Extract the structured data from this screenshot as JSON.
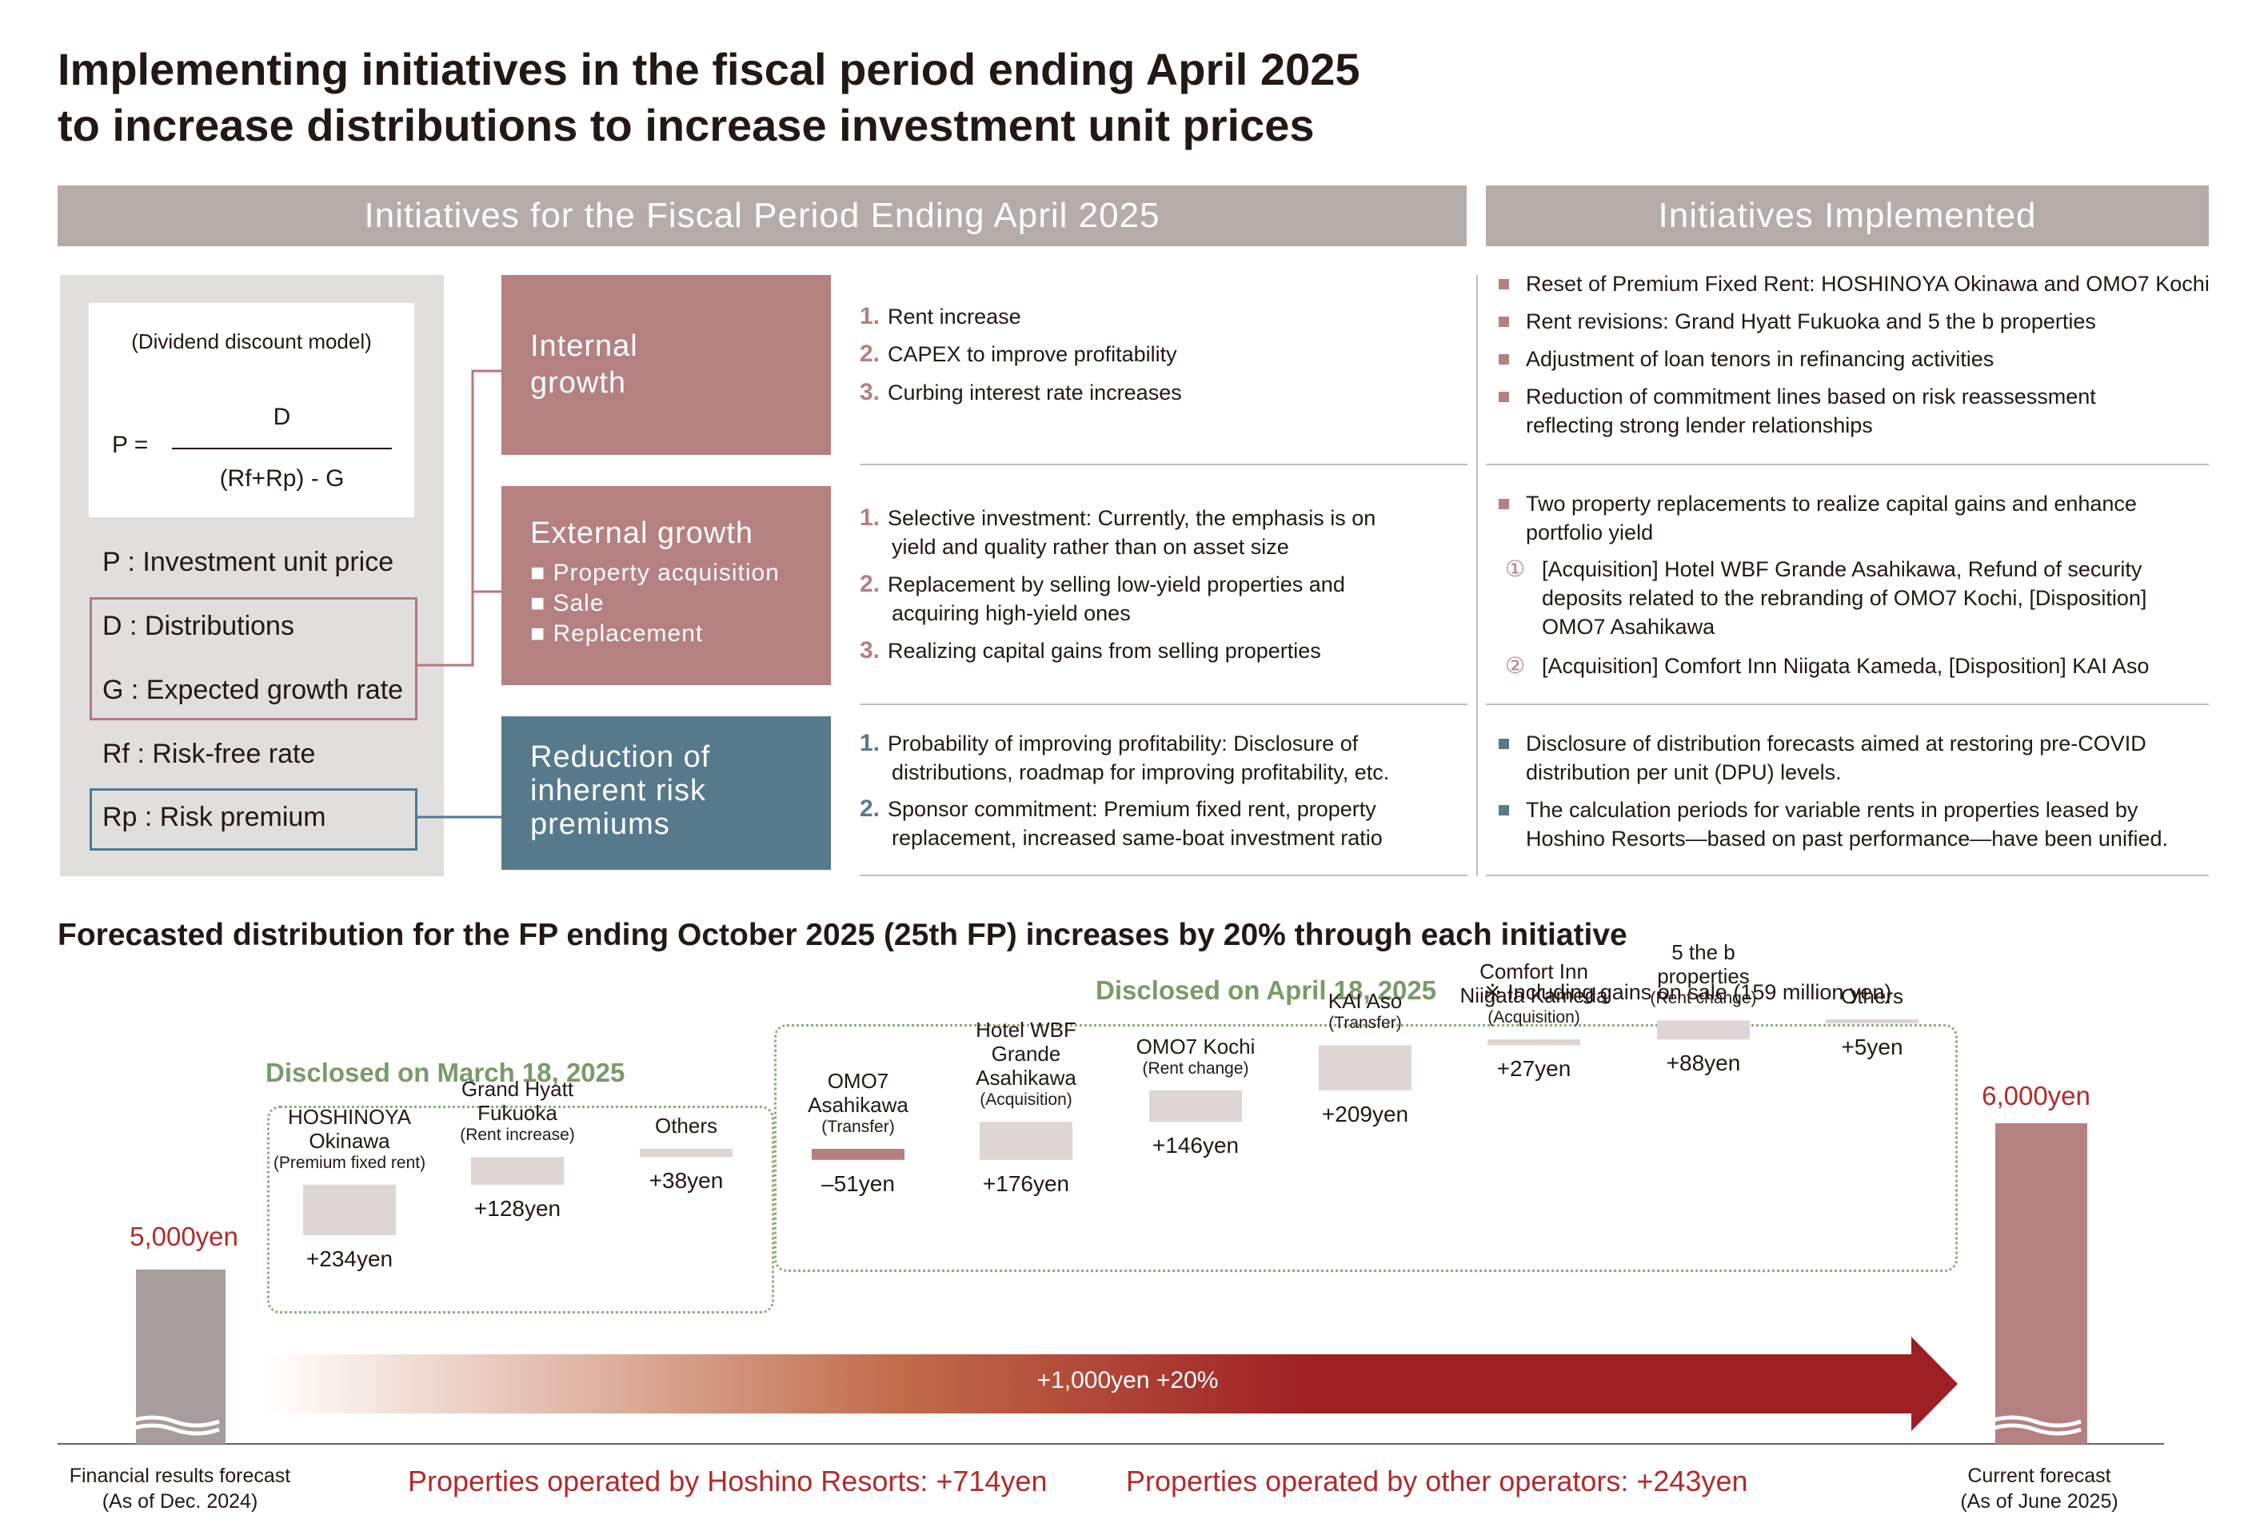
{
  "title_line1": "Implementing initiatives in the fiscal period ending April 2025",
  "title_line2": "to increase distributions to increase investment unit prices",
  "header_left": "Initiatives for the Fiscal Period Ending April 2025",
  "header_right": "Initiatives Implemented",
  "ddm": {
    "caption": "(Dividend discount model)",
    "p_eq": "P =",
    "numerator": "D",
    "denominator": "(Rf+Rp) - G",
    "vars": {
      "p": "P : Investment unit price",
      "d": "D : Distributions",
      "g": "G : Expected growth rate",
      "rf": "Rf : Risk-free rate",
      "rp": "Rp : Risk premium"
    }
  },
  "categories": {
    "internal": {
      "title1": "Internal",
      "title2": "growth"
    },
    "external": {
      "title": "External growth",
      "sub1": "■ Property acquisition",
      "sub2": "■ Sale",
      "sub3": "■ Replacement"
    },
    "risk": {
      "title1": "Reduction of",
      "title2": "inherent risk",
      "title3": "premiums"
    }
  },
  "internal_items": [
    {
      "n": "1.",
      "t": "Rent increase"
    },
    {
      "n": "2.",
      "t": "CAPEX to improve profitability"
    },
    {
      "n": "3.",
      "t": "Curbing interest rate increases"
    }
  ],
  "external_items": [
    {
      "n": "1.",
      "t1": "Selective investment: Currently, the emphasis is on",
      "t2": "yield and quality rather than on asset size"
    },
    {
      "n": "2.",
      "t1": "Replacement by selling low-yield properties and",
      "t2": "acquiring high-yield ones"
    },
    {
      "n": "3.",
      "t1": "Realizing capital gains from selling properties"
    }
  ],
  "risk_items": [
    {
      "n": "1.",
      "t1": "Probability of improving profitability: Disclosure of",
      "t2": "distributions, roadmap for improving profitability, etc."
    },
    {
      "n": "2.",
      "t1": "Sponsor commitment: Premium fixed rent, property",
      "t2": "replacement, increased same-boat investment ratio"
    }
  ],
  "implemented_internal": [
    {
      "t1": "Reset of Premium Fixed Rent: HOSHINOYA Okinawa and OMO7 Kochi"
    },
    {
      "t1": "Rent revisions: Grand Hyatt Fukuoka and 5 the b properties"
    },
    {
      "t1": "Adjustment of loan tenors in refinancing activities"
    },
    {
      "t1": "Reduction of commitment lines based on risk reassessment",
      "t2": "reflecting strong lender relationships"
    }
  ],
  "implemented_external": {
    "main1": "Two property replacements to realize capital gains and enhance",
    "main2": "portfolio yield",
    "c1": "①",
    "s1_1": "[Acquisition] Hotel WBF Grande Asahikawa, Refund of security",
    "s1_2": "deposits related to the rebranding of OMO7 Kochi, [Disposition]",
    "s1_3": "OMO7 Asahikawa",
    "c2": "②",
    "s2_1": "[Acquisition] Comfort Inn Niigata Kameda, [Disposition] KAI Aso"
  },
  "implemented_risk": [
    {
      "t1": "Disclosure of distribution forecasts aimed at restoring pre-COVID",
      "t2": "distribution per unit (DPU) levels."
    },
    {
      "t1": "The calculation periods for variable rents in properties leased by",
      "t2": "Hoshino Resorts—based on past performance—have been unified."
    }
  ],
  "forecast_title": "Forecasted distribution for the FP ending October 2025 (25th FP) increases by 20% through each initiative",
  "disclosed_march": "Disclosed on March 18, 2025",
  "disclosed_april": "Disclosed on April 18, 2025",
  "gains_note": "※ Including gains on sale (159 million yen)",
  "colors": {
    "accent_red": "#b58080",
    "accent_blue": "#57798c",
    "dark_red": "#9e1f23",
    "green": "#7a9a67",
    "header_gray": "#b5aba8"
  },
  "chart_data": {
    "type": "bar",
    "subtype": "waterfall",
    "unit": "yen",
    "start": {
      "label1": "Financial results forecast",
      "label2": "(As of Dec. 2024)",
      "value": 5000,
      "value_label": "5,000yen"
    },
    "end": {
      "label1": "Current forecast",
      "label2": "(As of June 2025)",
      "value": 6000,
      "value_label": "6,000yen"
    },
    "steps": [
      {
        "l1": "HOSHINOYA",
        "l2": "Okinawa",
        "note": "(Premium fixed rent)",
        "value": 234,
        "value_label": "+234yen"
      },
      {
        "l1": "Grand Hyatt",
        "l2": "Fukuoka",
        "note": "(Rent increase)",
        "value": 128,
        "value_label": "+128yen"
      },
      {
        "l1": "Others",
        "value": 38,
        "value_label": "+38yen"
      },
      {
        "l1": "OMO7",
        "l2": "Asahikawa",
        "note": "(Transfer)",
        "value": -51,
        "value_label": "–51yen"
      },
      {
        "l1": "Hotel WBF",
        "l2": "Grande",
        "l3": "Asahikawa",
        "note": "(Acquisition)",
        "value": 176,
        "value_label": "+176yen"
      },
      {
        "l1": "OMO7 Kochi",
        "note": "(Rent change)",
        "value": 146,
        "value_label": "+146yen"
      },
      {
        "l1": "KAI Aso",
        "note": "(Transfer)",
        "value": 209,
        "value_label": "+209yen"
      },
      {
        "l1": "Comfort Inn",
        "l2": "Niigata Kameda",
        "note": "(Acquisition)",
        "value": 27,
        "value_label": "+27yen"
      },
      {
        "l1": "5 the b",
        "l2": "properties",
        "note": "(Rent change)",
        "value": 88,
        "value_label": "+88yen"
      },
      {
        "l1": "Others",
        "value": 5,
        "value_label": "+5yen"
      }
    ],
    "arrow_label": "+1,000yen +20%",
    "footer_hoshino": "Properties operated by Hoshino Resorts: +714yen",
    "footer_other": "Properties operated by other operators: +243yen"
  }
}
